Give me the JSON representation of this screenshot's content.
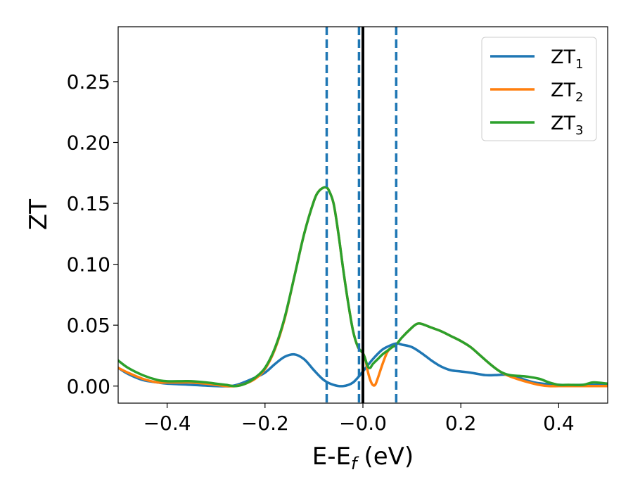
{
  "chart_data": {
    "type": "line",
    "xlabel": "E-E",
    "xlabel_sub": "f",
    "xlabel_unit": "(eV)",
    "ylabel": "ZT",
    "xlim": [
      -0.5,
      0.5
    ],
    "ylim": [
      -0.014,
      0.295
    ],
    "xticks": [
      -0.4,
      -0.2,
      0.0,
      0.2,
      0.4
    ],
    "xtick_labels": [
      "−0.4",
      "−0.2",
      "−0.0",
      "0.2",
      "0.4"
    ],
    "yticks": [
      0.0,
      0.05,
      0.1,
      0.15,
      0.2,
      0.25
    ],
    "ytick_labels": [
      "0.00",
      "0.05",
      "0.10",
      "0.15",
      "0.20",
      "0.25"
    ],
    "legend_position": "top-right",
    "grid": false,
    "vertical_lines": [
      {
        "x": -0.074,
        "style": "dashed",
        "color": "#1f77b4"
      },
      {
        "x": -0.008,
        "style": "dashed",
        "color": "#1f77b4"
      },
      {
        "x": 0.0,
        "style": "solid",
        "color": "#000000"
      },
      {
        "x": 0.068,
        "style": "dashed",
        "color": "#1f77b4"
      }
    ],
    "series": [
      {
        "name": "ZT",
        "sub": "1",
        "color": "#1f77b4",
        "x": [
          -0.5,
          -0.48,
          -0.45,
          -0.42,
          -0.4,
          -0.35,
          -0.3,
          -0.27,
          -0.25,
          -0.22,
          -0.2,
          -0.18,
          -0.16,
          -0.14,
          -0.12,
          -0.1,
          -0.08,
          -0.06,
          -0.04,
          -0.02,
          0.0,
          0.02,
          0.04,
          0.06,
          0.07,
          0.08,
          0.1,
          0.12,
          0.14,
          0.16,
          0.18,
          0.2,
          0.22,
          0.25,
          0.27,
          0.3,
          0.35,
          0.4,
          0.45,
          0.48,
          0.5
        ],
        "y": [
          0.015,
          0.01,
          0.005,
          0.003,
          0.002,
          0.001,
          0.0,
          0.0,
          0.002,
          0.007,
          0.011,
          0.018,
          0.024,
          0.026,
          0.022,
          0.013,
          0.005,
          0.001,
          0.0,
          0.003,
          0.012,
          0.022,
          0.03,
          0.034,
          0.035,
          0.034,
          0.032,
          0.027,
          0.021,
          0.016,
          0.013,
          0.012,
          0.011,
          0.009,
          0.009,
          0.009,
          0.003,
          0.001,
          0.001,
          0.001,
          0.001
        ]
      },
      {
        "name": "ZT",
        "sub": "2",
        "color": "#ff7f0e",
        "x": [
          -0.5,
          -0.48,
          -0.45,
          -0.42,
          -0.4,
          -0.37,
          -0.35,
          -0.32,
          -0.3,
          -0.28,
          -0.26,
          -0.24,
          -0.22,
          -0.2,
          -0.18,
          -0.16,
          -0.14,
          -0.12,
          -0.1,
          -0.09,
          -0.08,
          -0.075,
          -0.07,
          -0.06,
          -0.05,
          -0.04,
          -0.03,
          -0.02,
          -0.01,
          0.0,
          0.005,
          0.01,
          0.015,
          0.02,
          0.025,
          0.03,
          0.04,
          0.05,
          0.06,
          0.068,
          0.08,
          0.1,
          0.11,
          0.12,
          0.14,
          0.16,
          0.18,
          0.2,
          0.22,
          0.24,
          0.26,
          0.28,
          0.3,
          0.33,
          0.36,
          0.38,
          0.4,
          0.42,
          0.45,
          0.47,
          0.5
        ],
        "y": [
          0.015,
          0.011,
          0.006,
          0.003,
          0.003,
          0.003,
          0.003,
          0.002,
          0.001,
          0.0,
          0.0,
          0.002,
          0.006,
          0.014,
          0.03,
          0.055,
          0.09,
          0.125,
          0.152,
          0.16,
          0.163,
          0.163,
          0.161,
          0.15,
          0.125,
          0.095,
          0.068,
          0.045,
          0.032,
          0.027,
          0.022,
          0.012,
          0.005,
          0.001,
          0.001,
          0.006,
          0.018,
          0.028,
          0.032,
          0.034,
          0.04,
          0.048,
          0.051,
          0.051,
          0.048,
          0.045,
          0.041,
          0.037,
          0.032,
          0.025,
          0.018,
          0.012,
          0.008,
          0.004,
          0.001,
          0.0,
          0.0,
          0.0,
          0.0,
          0.0,
          0.0
        ]
      },
      {
        "name": "ZT",
        "sub": "3",
        "color": "#2ca02c",
        "x": [
          -0.5,
          -0.48,
          -0.45,
          -0.42,
          -0.4,
          -0.37,
          -0.35,
          -0.32,
          -0.3,
          -0.28,
          -0.26,
          -0.24,
          -0.22,
          -0.2,
          -0.18,
          -0.16,
          -0.14,
          -0.12,
          -0.1,
          -0.09,
          -0.08,
          -0.075,
          -0.07,
          -0.06,
          -0.05,
          -0.04,
          -0.03,
          -0.02,
          -0.01,
          0.0,
          0.005,
          0.01,
          0.015,
          0.02,
          0.03,
          0.04,
          0.05,
          0.06,
          0.068,
          0.08,
          0.1,
          0.11,
          0.12,
          0.14,
          0.16,
          0.18,
          0.2,
          0.22,
          0.24,
          0.26,
          0.28,
          0.3,
          0.33,
          0.36,
          0.38,
          0.4,
          0.42,
          0.45,
          0.47,
          0.5
        ],
        "y": [
          0.021,
          0.015,
          0.009,
          0.005,
          0.004,
          0.004,
          0.004,
          0.003,
          0.002,
          0.001,
          0.0,
          0.002,
          0.007,
          0.015,
          0.031,
          0.056,
          0.09,
          0.125,
          0.152,
          0.16,
          0.163,
          0.163,
          0.161,
          0.15,
          0.125,
          0.095,
          0.068,
          0.045,
          0.032,
          0.027,
          0.022,
          0.016,
          0.015,
          0.018,
          0.022,
          0.026,
          0.029,
          0.032,
          0.034,
          0.04,
          0.048,
          0.051,
          0.051,
          0.048,
          0.045,
          0.041,
          0.037,
          0.032,
          0.025,
          0.018,
          0.012,
          0.009,
          0.008,
          0.006,
          0.003,
          0.001,
          0.001,
          0.001,
          0.003,
          0.002
        ]
      }
    ]
  }
}
